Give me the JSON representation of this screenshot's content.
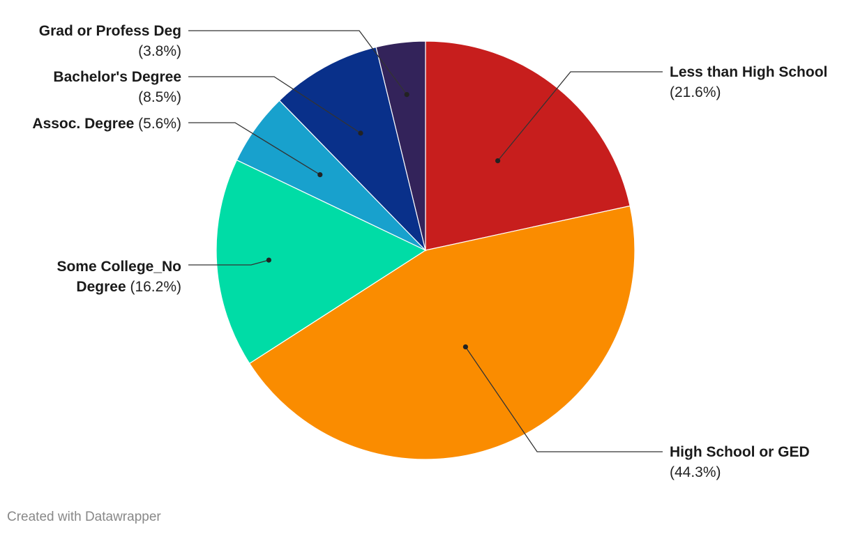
{
  "chart_data": {
    "type": "pie",
    "slices": [
      {
        "label": "Less than High School",
        "value": 21.6,
        "value_label": "(21.6%)",
        "color": "#c71e1d"
      },
      {
        "label": "High School or GED",
        "value": 44.3,
        "value_label": "(44.3%)",
        "color": "#fa8c00"
      },
      {
        "label": "Some College_No Degree",
        "label_lines": [
          "Some College_No",
          "Degree"
        ],
        "value": 16.2,
        "value_label": "(16.2%)",
        "color": "#00dca6"
      },
      {
        "label": "Assoc. Degree",
        "value": 5.6,
        "value_label": "(5.6%)",
        "color": "#18a1cd"
      },
      {
        "label": "Bachelor's Degree",
        "value": 8.5,
        "value_label": "(8.5%)",
        "color": "#09308a"
      },
      {
        "label": "Grad or Profess Deg",
        "value": 3.8,
        "value_label": "(3.8%)",
        "color": "#33235a"
      }
    ]
  },
  "footer": {
    "credit": "Created with Datawrapper"
  }
}
